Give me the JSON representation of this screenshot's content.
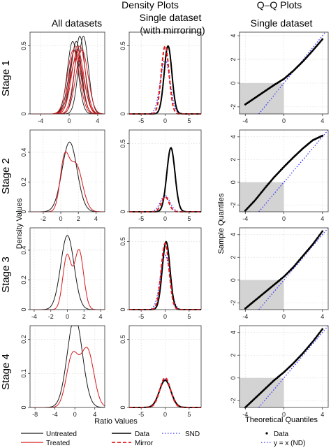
{
  "headers": {
    "density": "Density Plots",
    "all": "All datasets",
    "single_l1": "Single dataset",
    "single_l2": "(with mirroring)",
    "qq": "Q–Q Plots",
    "qq_single": "Single dataset"
  },
  "axis_text": {
    "density_y": "Density Values",
    "ratio_x": "Ratio Values",
    "sample_q": "Sample Quantiles",
    "theoretical_q": "Theoretical Quantiles"
  },
  "legends": {
    "untreated": "Untreated",
    "treated": "Treated",
    "data": "Data",
    "mirror": "Mirror",
    "snd": "SND",
    "qq_data": "Data",
    "qq_line": "y = x (ND)"
  },
  "colors": {
    "untreated": "#1a1a1a",
    "treated": "#d7191c",
    "data": "#000000",
    "mirror": "#e31a1c",
    "snd": "#3333ff",
    "shade": "#d3d3d3",
    "grid": "#e3e3e3",
    "frame": "#333333"
  },
  "chart_data": [
    {
      "stage": "Stage 1",
      "panel": "all",
      "type": "line",
      "xlim": [
        -5.5,
        5
      ],
      "ylim": [
        0,
        0.6
      ],
      "xticks": [
        -4,
        0,
        4
      ],
      "yticks": [
        0,
        0.5
      ],
      "untreated": [
        {
          "mu": 0.5,
          "sd": 0.75
        },
        {
          "mu": 1.0,
          "sd": 0.75
        },
        {
          "mu": 1.5,
          "sd": 0.7
        },
        {
          "mu": 2.0,
          "sd": 0.7
        },
        {
          "mu": 0.8,
          "sd": 0.85
        }
      ],
      "treated": [
        {
          "mu": 0.6,
          "sd": 0.85
        },
        {
          "mu": 0.9,
          "sd": 0.8
        },
        {
          "mu": 1.2,
          "sd": 0.85
        },
        {
          "mu": 1.5,
          "sd": 0.8
        },
        {
          "mu": 1.8,
          "sd": 0.85
        },
        {
          "mu": 1.1,
          "sd": 0.95
        }
      ]
    },
    {
      "stage": "Stage 1",
      "panel": "single",
      "type": "line",
      "xlim": [
        -7.5,
        7.5
      ],
      "ylim": [
        0,
        0.6
      ],
      "xticks": [
        -5,
        0,
        5
      ],
      "yticks": [
        0,
        0.5
      ],
      "data": [
        {
          "mu": 0.6,
          "sd": 0.8
        }
      ],
      "mirror": [
        {
          "mu": 0,
          "sd": 0.8
        }
      ],
      "snd": [
        {
          "mu": 0,
          "sd": 1.0
        }
      ]
    },
    {
      "stage": "Stage 1",
      "panel": "qq",
      "type": "scatter",
      "xlim": [
        -4.6,
        4.6
      ],
      "ylim": [
        -2.6,
        4.3
      ],
      "xticks": [
        -4,
        0,
        4
      ],
      "yticks": [
        -2,
        0,
        2,
        4
      ],
      "curve": [
        [
          -4,
          -1.8
        ],
        [
          -3,
          -1.25
        ],
        [
          -2,
          -0.7
        ],
        [
          -1,
          -0.15
        ],
        [
          0,
          0.35
        ],
        [
          1,
          1.05
        ],
        [
          2,
          1.85
        ],
        [
          3,
          2.75
        ],
        [
          4,
          3.7
        ]
      ]
    },
    {
      "stage": "Stage 2",
      "panel": "all",
      "type": "line",
      "xlim": [
        -3.5,
        5
      ],
      "ylim": [
        0,
        0.55
      ],
      "xticks": [
        -2,
        0,
        2,
        4
      ],
      "yticks": [
        0,
        0.2,
        0.4
      ],
      "untreated": [
        {
          "mu": 1.0,
          "sd": 0.85
        }
      ],
      "treated": [
        {
          "mu": 0.4,
          "sd": 0.5,
          "w": 0.4
        },
        {
          "mu": 1.7,
          "sd": 0.75,
          "w": 0.6
        }
      ]
    },
    {
      "stage": "Stage 2",
      "panel": "single",
      "type": "line",
      "xlim": [
        -7.5,
        7.5
      ],
      "ylim": [
        0,
        0.6
      ],
      "xticks": [
        -5,
        0,
        5
      ],
      "yticks": [
        0,
        0.5
      ],
      "data": [
        {
          "mu": 1.2,
          "sd": 0.85
        }
      ],
      "mirror": [
        {
          "mu": 0,
          "sd": 0.8,
          "scale": 0.22
        }
      ],
      "snd": [
        {
          "mu": 0,
          "sd": 1.0,
          "scale": 0.3
        }
      ]
    },
    {
      "stage": "Stage 2",
      "panel": "qq",
      "type": "scatter",
      "xlim": [
        -4.6,
        4.6
      ],
      "ylim": [
        -2.6,
        4.6
      ],
      "xticks": [
        -4,
        0,
        4
      ],
      "yticks": [
        -2,
        0,
        2,
        4
      ],
      "curve": [
        [
          -4,
          -2.5
        ],
        [
          -3,
          -1.6
        ],
        [
          -2,
          -0.55
        ],
        [
          -1,
          0.45
        ],
        [
          0,
          1.35
        ],
        [
          1,
          2.2
        ],
        [
          2,
          3.0
        ],
        [
          3,
          3.7
        ],
        [
          4,
          4.1
        ]
      ]
    },
    {
      "stage": "Stage 3",
      "panel": "all",
      "type": "line",
      "xlim": [
        -4.5,
        4.5
      ],
      "ylim": [
        0,
        0.55
      ],
      "xticks": [
        -4,
        -2,
        0,
        2,
        4
      ],
      "yticks": [
        0,
        0.2,
        0.4
      ],
      "untreated": [
        {
          "mu": 0.0,
          "sd": 0.8
        }
      ],
      "treated": [
        {
          "mu": -0.05,
          "sd": 0.5,
          "w": 0.45
        },
        {
          "mu": 1.4,
          "sd": 0.55,
          "w": 0.55
        }
      ]
    },
    {
      "stage": "Stage 3",
      "panel": "single",
      "type": "line",
      "xlim": [
        -7.5,
        7.5
      ],
      "ylim": [
        0,
        0.6
      ],
      "xticks": [
        -5,
        0,
        5
      ],
      "yticks": [
        0,
        0.5
      ],
      "data": [
        {
          "mu": 0.2,
          "sd": 0.8
        }
      ],
      "mirror": [
        {
          "mu": 0,
          "sd": 0.82
        }
      ],
      "snd": [
        {
          "mu": 0,
          "sd": 1.0
        }
      ]
    },
    {
      "stage": "Stage 3",
      "panel": "qq",
      "type": "scatter",
      "xlim": [
        -4.6,
        4.6
      ],
      "ylim": [
        -2.6,
        4.6
      ],
      "xticks": [
        -4,
        0,
        4
      ],
      "yticks": [
        -2,
        0,
        2,
        4
      ],
      "curve": [
        [
          -4,
          -2.5
        ],
        [
          -3,
          -1.8
        ],
        [
          -2,
          -1.1
        ],
        [
          -1,
          -0.4
        ],
        [
          0,
          0.3
        ],
        [
          1,
          1.15
        ],
        [
          2,
          2.15
        ],
        [
          3,
          3.15
        ],
        [
          4,
          4.3
        ]
      ]
    },
    {
      "stage": "Stage 4",
      "panel": "all",
      "type": "line",
      "xlim": [
        -9,
        6
      ],
      "ylim": [
        0,
        0.24
      ],
      "xticks": [
        -8,
        -4,
        0,
        4
      ],
      "yticks": [
        0,
        0.1,
        0.2
      ],
      "untreated": [
        {
          "mu": 0.0,
          "sd": 1.5
        }
      ],
      "treated": [
        {
          "mu": -0.5,
          "sd": 1.2,
          "w": 0.45
        },
        {
          "mu": 2.5,
          "sd": 1.3,
          "w": 0.55
        }
      ]
    },
    {
      "stage": "Stage 4",
      "panel": "single",
      "type": "line",
      "xlim": [
        -7.5,
        7.5
      ],
      "ylim": [
        0,
        0.6
      ],
      "xticks": [
        -5,
        0,
        5
      ],
      "yticks": [
        0,
        0.5
      ],
      "data": [
        {
          "mu": 0,
          "sd": 1.2,
          "scale": 0.6
        }
      ],
      "mirror": [
        {
          "mu": 0,
          "sd": 1.1,
          "scale": 0.6
        }
      ],
      "snd": [
        {
          "mu": 0,
          "sd": 1.15,
          "scale": 0.6
        }
      ]
    },
    {
      "stage": "Stage 4",
      "panel": "qq",
      "type": "scatter",
      "xlim": [
        -4.6,
        4.6
      ],
      "ylim": [
        -2.6,
        4.6
      ],
      "xticks": [
        -4,
        0,
        4
      ],
      "yticks": [
        -2,
        0,
        2,
        4
      ],
      "curve": [
        [
          -4,
          -2.6
        ],
        [
          -3,
          -1.8
        ],
        [
          -2,
          -1.0
        ],
        [
          -1,
          -0.2
        ],
        [
          0,
          0.5
        ],
        [
          1,
          1.3
        ],
        [
          2,
          2.2
        ],
        [
          3,
          3.2
        ],
        [
          4,
          4.3
        ]
      ]
    }
  ]
}
